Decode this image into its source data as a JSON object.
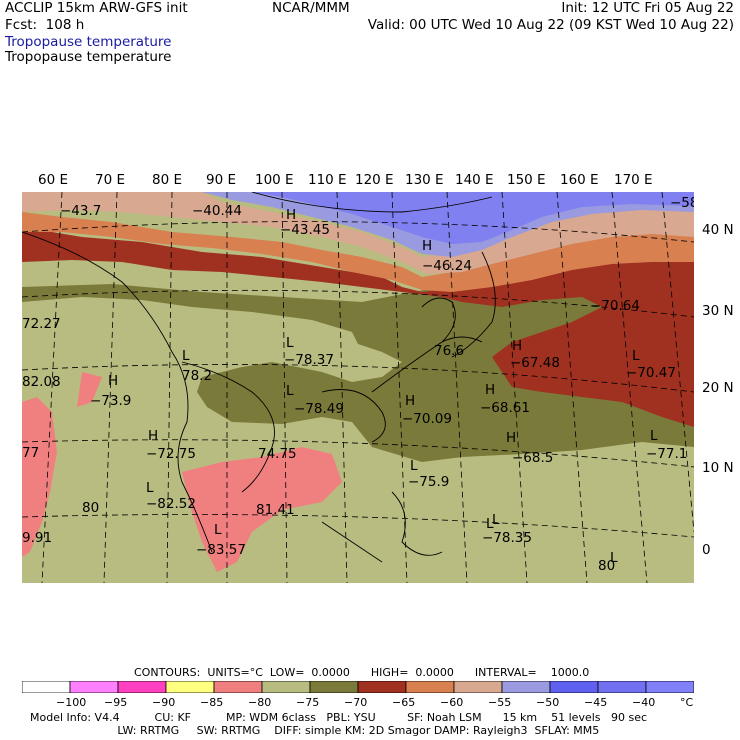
{
  "header": {
    "title_left": "ACCLIP 15km ARW-GFS init",
    "fcst": "Fcst:  108 h",
    "center": "NCAR/MMM",
    "init": "Init: 12 UTC Fri 05 Aug 22",
    "valid": "Valid: 00 UTC Wed 10 Aug 22 (09 KST Wed 10 Aug 22)",
    "field_blue": "Tropopause temperature",
    "field_black": "Tropopause temperature"
  },
  "map": {
    "lon_labels": [
      "60 E",
      "70 E",
      "80 E",
      "90 E",
      "100 E",
      "110 E",
      "120 E",
      "130 E",
      "140 E",
      "150 E",
      "160 E",
      "170 E"
    ],
    "lat_labels": [
      "40 N",
      "30 N",
      "20 N",
      "10 N",
      "0"
    ],
    "bands": [
      {
        "name": "band-purple",
        "color": "#8080f0"
      },
      {
        "name": "band-lightpurple",
        "color": "#9a9ae0"
      },
      {
        "name": "band-lightbrown",
        "color": "#d8a890"
      },
      {
        "name": "band-orange",
        "color": "#d88050"
      },
      {
        "name": "band-darkred",
        "color": "#a03020"
      },
      {
        "name": "band-olive",
        "color": "#7a7a3a"
      },
      {
        "name": "band-khaki",
        "color": "#b8bc80"
      },
      {
        "name": "band-pink",
        "color": "#f08080"
      }
    ],
    "annotations": [
      {
        "text": "−43.7"
      },
      {
        "text": "−40.44"
      },
      {
        "text": "H"
      },
      {
        "text": "−43.45"
      },
      {
        "text": "H"
      },
      {
        "text": "−46.24"
      },
      {
        "text": "−58"
      },
      {
        "text": "−70.64"
      },
      {
        "text": "72.27"
      },
      {
        "text": "L"
      },
      {
        "text": "−78.37"
      },
      {
        "text": "H"
      },
      {
        "text": "−67.48"
      },
      {
        "text": "L"
      },
      {
        "text": "−70.47"
      },
      {
        "text": "L"
      },
      {
        "text": "78.2"
      },
      {
        "text": "82.08"
      },
      {
        "text": "H"
      },
      {
        "text": "−73.9"
      },
      {
        "text": "L"
      },
      {
        "text": "−78.49"
      },
      {
        "text": "H"
      },
      {
        "text": "−70.09"
      },
      {
        "text": "H"
      },
      {
        "text": "−68.61"
      },
      {
        "text": "H"
      },
      {
        "text": "−72.75"
      },
      {
        "text": "74.75"
      },
      {
        "text": "H"
      },
      {
        "text": "−68.5"
      },
      {
        "text": "L"
      },
      {
        "text": "−77.1"
      },
      {
        "text": "77"
      },
      {
        "text": "L"
      },
      {
        "text": "−75.9"
      },
      {
        "text": "L"
      },
      {
        "text": "−82.52"
      },
      {
        "text": "80"
      },
      {
        "text": "81.41"
      },
      {
        "text": "L"
      },
      {
        "text": "L"
      },
      {
        "text": "−78.35"
      },
      {
        "text": "9.91"
      },
      {
        "text": "L"
      },
      {
        "text": "−83.57"
      },
      {
        "text": "L"
      },
      {
        "text": "80"
      },
      {
        "text": "76.6"
      }
    ]
  },
  "legend": {
    "contours": "CONTOURS:  UNITS=°C  LOW=  0.0000      HIGH=  0.0000      INTERVAL=    1000.0",
    "colors": [
      "#ffffff",
      "#ff80ff",
      "#ff40c0",
      "#ffff80",
      "#f08080",
      "#b8bc80",
      "#7a7a3a",
      "#a03020",
      "#d88050",
      "#d8a890",
      "#9a9ae0",
      "#6060f0",
      "#7070f0",
      "#8080f8"
    ],
    "ticks": [
      "−100",
      "−95",
      "−90",
      "−85",
      "−80",
      "−75",
      "−70",
      "−65",
      "−60",
      "−55",
      "−50",
      "−45",
      "−40",
      "°C"
    ]
  },
  "footer": {
    "line1": "Model Info: V4.4          CU: KF          MP: WDM 6class   PBL: YSU         SF: Noah LSM      15 km    51 levels   90 sec",
    "line2": "                         LW: RRTMG     SW: RRTMG    DIFF: simple KM: 2D Smagor DAMP: Rayleigh3  SFLAY: MM5"
  }
}
